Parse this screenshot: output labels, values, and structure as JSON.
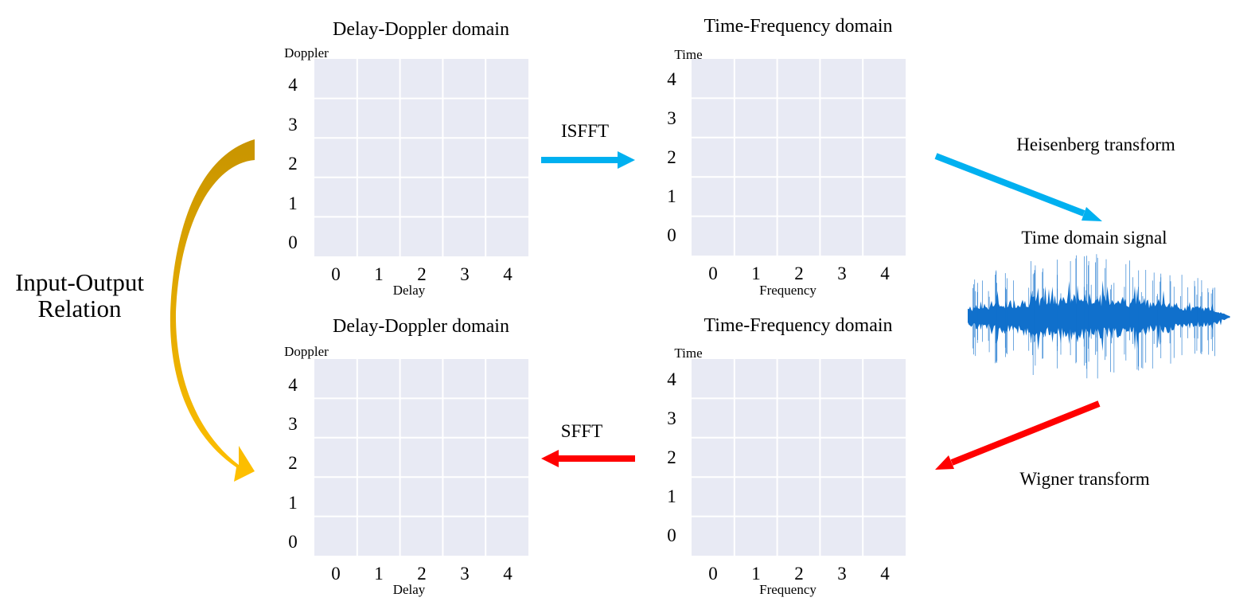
{
  "colors": {
    "grid_fill": "#E8EAF4",
    "grid_line": "#FFFFFF",
    "forward_arrow": "#00B0F0",
    "backward_arrow": "#FF0000",
    "relation_arrow_top": "#C89400",
    "relation_arrow_bottom": "#FFC000",
    "signal": "#1070CC"
  },
  "panels": {
    "dd_top": {
      "title": "Delay-Doppler domain",
      "y_axis_label": "Doppler",
      "x_axis_label": "Delay",
      "y_ticks": [
        "0",
        "1",
        "2",
        "3",
        "4"
      ],
      "x_ticks": [
        "0",
        "1",
        "2",
        "3",
        "4"
      ]
    },
    "tf_top": {
      "title": "Time-Frequency domain",
      "y_axis_label": "Time",
      "x_axis_label": "Frequency",
      "y_ticks": [
        "0",
        "1",
        "2",
        "3",
        "4"
      ],
      "x_ticks": [
        "0",
        "1",
        "2",
        "3",
        "4"
      ]
    },
    "dd_bottom": {
      "title": "Delay-Doppler domain",
      "y_axis_label": "Doppler",
      "x_axis_label": "Delay",
      "y_ticks": [
        "0",
        "1",
        "2",
        "3",
        "4"
      ],
      "x_ticks": [
        "0",
        "1",
        "2",
        "3",
        "4"
      ]
    },
    "tf_bottom": {
      "title": "Time-Frequency domain",
      "y_axis_label": "Time",
      "x_axis_label": "Frequency",
      "y_ticks": [
        "0",
        "1",
        "2",
        "3",
        "4"
      ],
      "x_ticks": [
        "0",
        "1",
        "2",
        "3",
        "4"
      ]
    }
  },
  "operations": {
    "isfft": "ISFFT",
    "sfft": "SFFT",
    "heisenberg": "Heisenberg transform",
    "wigner": "Wigner transform"
  },
  "signal_label": "Time domain signal",
  "relation_label": [
    "Input-Output",
    "Relation"
  ]
}
